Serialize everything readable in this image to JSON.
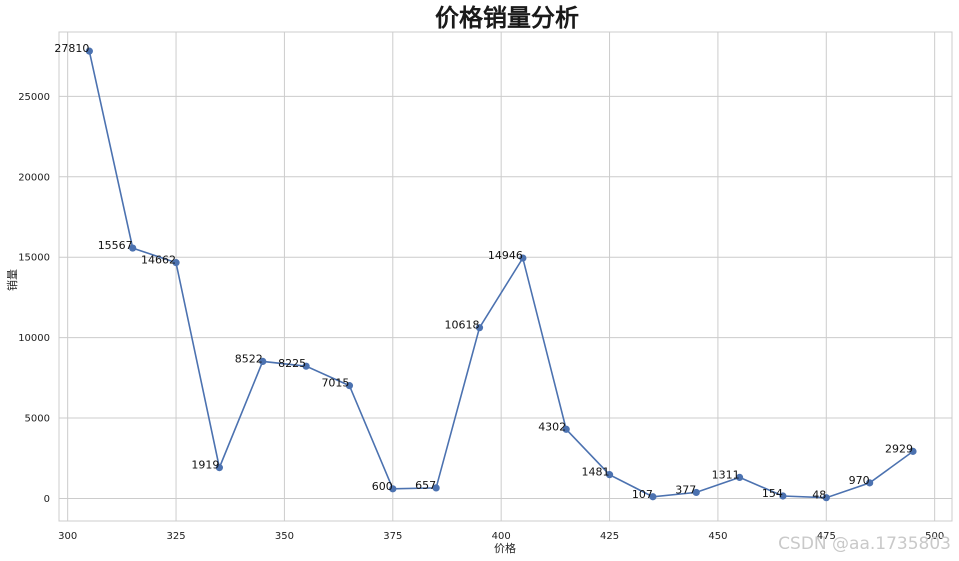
{
  "chart_data": {
    "type": "line",
    "title": "价格销量分析",
    "xlabel": "价格",
    "ylabel": "销量",
    "x": [
      305,
      315,
      325,
      335,
      345,
      355,
      365,
      375,
      385,
      395,
      405,
      415,
      425,
      435,
      445,
      455,
      465,
      475,
      485,
      495
    ],
    "y": [
      27810,
      15567,
      14662,
      1919,
      8522,
      8225,
      7015,
      600,
      657,
      10618,
      14946,
      4302,
      1481,
      107,
      377,
      1311,
      154,
      48,
      970,
      2929
    ],
    "data_labels": [
      "27810",
      "15567",
      "14662",
      "1919",
      "8522",
      "8225",
      "7015",
      "600",
      "657",
      "10618",
      "14946",
      "4302",
      "1481",
      "107",
      "377",
      "1311",
      "154",
      "48",
      "970",
      "2929"
    ],
    "xlim": [
      298,
      504
    ],
    "ylim": [
      -1400,
      29000
    ],
    "xticks": [
      300,
      325,
      350,
      375,
      400,
      425,
      450,
      475,
      500
    ],
    "yticks": [
      0,
      5000,
      10000,
      15000,
      20000,
      25000
    ],
    "grid": true,
    "line_color": "#4c72b0"
  },
  "watermark": "CSDN @aa.1735803"
}
